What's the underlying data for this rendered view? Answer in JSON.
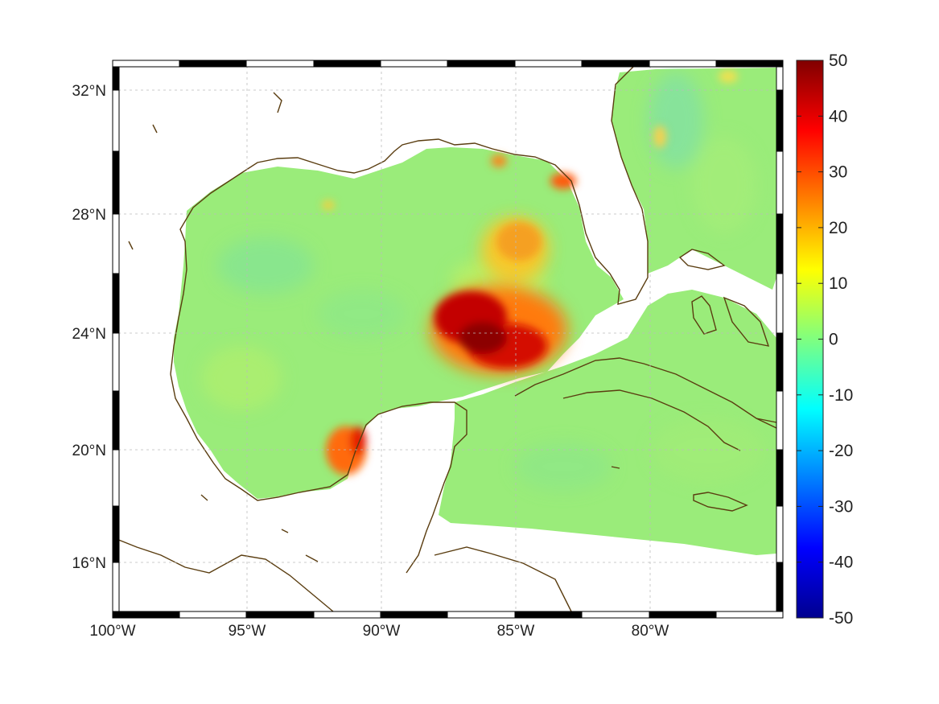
{
  "map": {
    "lon_labels": [
      "100°W",
      "95°W",
      "90°W",
      "85°W",
      "80°W"
    ],
    "lat_labels": [
      "32°N",
      "28°N",
      "24°N",
      "20°N",
      "16°N"
    ],
    "coastline_color": "#5a3d10",
    "grid": true,
    "frame": "black-white checker border"
  },
  "colorbar": {
    "min": -50,
    "max": 50,
    "tick_labels": [
      "50",
      "40",
      "30",
      "20",
      "10",
      "0",
      "-10",
      "-20",
      "-30",
      "-40",
      "-50"
    ],
    "colormap": "jet"
  }
}
